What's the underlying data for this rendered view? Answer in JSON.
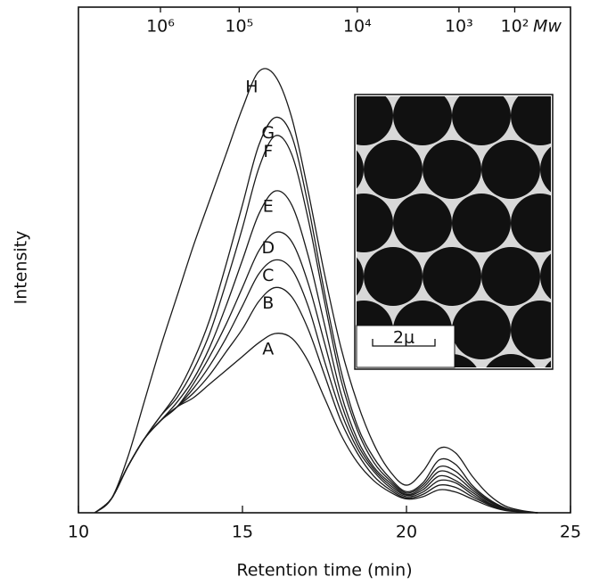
{
  "chart_data": {
    "type": "line",
    "xlabel": "Retention time (min)",
    "ylabel": "Intensity",
    "x": [
      10.5,
      11,
      11.5,
      12,
      12.5,
      13,
      13.5,
      14,
      14.5,
      15,
      15.5,
      16,
      16.5,
      17,
      17.5,
      18,
      18.5,
      19,
      19.5,
      20,
      20.5,
      21,
      21.5,
      22,
      22.5,
      23,
      23.5,
      24
    ],
    "series": [
      {
        "name": "A",
        "color": "#1a1a1a",
        "values": [
          0,
          3,
          10,
          16,
          20,
          23,
          25,
          28,
          31,
          34,
          37,
          39,
          38,
          33,
          25,
          17,
          11,
          7,
          4.5,
          3,
          3.5,
          5,
          4.5,
          3,
          1.5,
          0.5,
          0.2,
          0
        ]
      },
      {
        "name": "B",
        "color": "#1a1a1a",
        "values": [
          0,
          3,
          10,
          16,
          20,
          23,
          26,
          30,
          35,
          40,
          46,
          49,
          47,
          40,
          30,
          20,
          13,
          8,
          5,
          3.2,
          4,
          6,
          5.5,
          3.5,
          1.8,
          0.6,
          0.2,
          0
        ]
      },
      {
        "name": "C",
        "color": "#1a1a1a",
        "values": [
          0,
          3,
          10,
          16,
          20,
          23,
          27,
          32,
          38,
          45,
          52,
          55,
          53,
          45,
          33,
          22,
          14,
          9,
          5.5,
          3.5,
          4.5,
          7,
          6.5,
          4,
          2,
          0.7,
          0.2,
          0
        ]
      },
      {
        "name": "D",
        "color": "#1a1a1a",
        "values": [
          0,
          3,
          10,
          16,
          20,
          23,
          28,
          34,
          41,
          49,
          57,
          61,
          59,
          50,
          37,
          24,
          15,
          9.5,
          6,
          3.8,
          5,
          8,
          7,
          4.5,
          2.2,
          0.8,
          0.2,
          0
        ]
      },
      {
        "name": "E",
        "color": "#1a1a1a",
        "values": [
          0,
          3,
          10,
          16,
          20,
          24,
          29,
          36,
          45,
          55,
          65,
          70,
          67,
          56,
          41,
          26,
          16,
          10,
          6.5,
          4,
          5.5,
          9,
          8,
          5,
          2.5,
          0.9,
          0.3,
          0
        ]
      },
      {
        "name": "F",
        "color": "#1a1a1a",
        "values": [
          0,
          3,
          10,
          16,
          21,
          25,
          31,
          39,
          50,
          62,
          75,
          82,
          78,
          64,
          46,
          29,
          18,
          11,
          7,
          4.3,
          6,
          10,
          9,
          5.5,
          2.7,
          1,
          0.3,
          0
        ]
      },
      {
        "name": "G",
        "color": "#1a1a1a",
        "values": [
          0,
          3,
          10,
          16,
          21,
          26,
          33,
          42,
          54,
          67,
          80,
          86,
          82,
          67,
          48,
          31,
          19,
          12,
          7.5,
          4.6,
          6.5,
          11.5,
          10.5,
          6,
          3,
          1.1,
          0.3,
          0
        ]
      },
      {
        "name": "H",
        "color": "#1a1a1a",
        "values": [
          0,
          3,
          12,
          24,
          36,
          47,
          58,
          68,
          78,
          88,
          96,
          95,
          86,
          70,
          52,
          36,
          24,
          15,
          9,
          6,
          9,
          14,
          13,
          8,
          4,
          1.5,
          0.5,
          0
        ]
      }
    ],
    "xlim": [
      10,
      25
    ],
    "xticks": [
      10,
      15,
      20,
      25
    ],
    "ylim": [
      0,
      110
    ],
    "x2ticks": [
      {
        "value": 12.5,
        "label": "10⁶"
      },
      {
        "value": 14.9,
        "label": "10⁵"
      },
      {
        "value": 18.5,
        "label": "10⁴"
      },
      {
        "value": 21.6,
        "label": "10³"
      },
      {
        "value": 23.3,
        "label": "10²"
      }
    ],
    "x2label": "Mw",
    "inset_scale_label": "2μ"
  }
}
